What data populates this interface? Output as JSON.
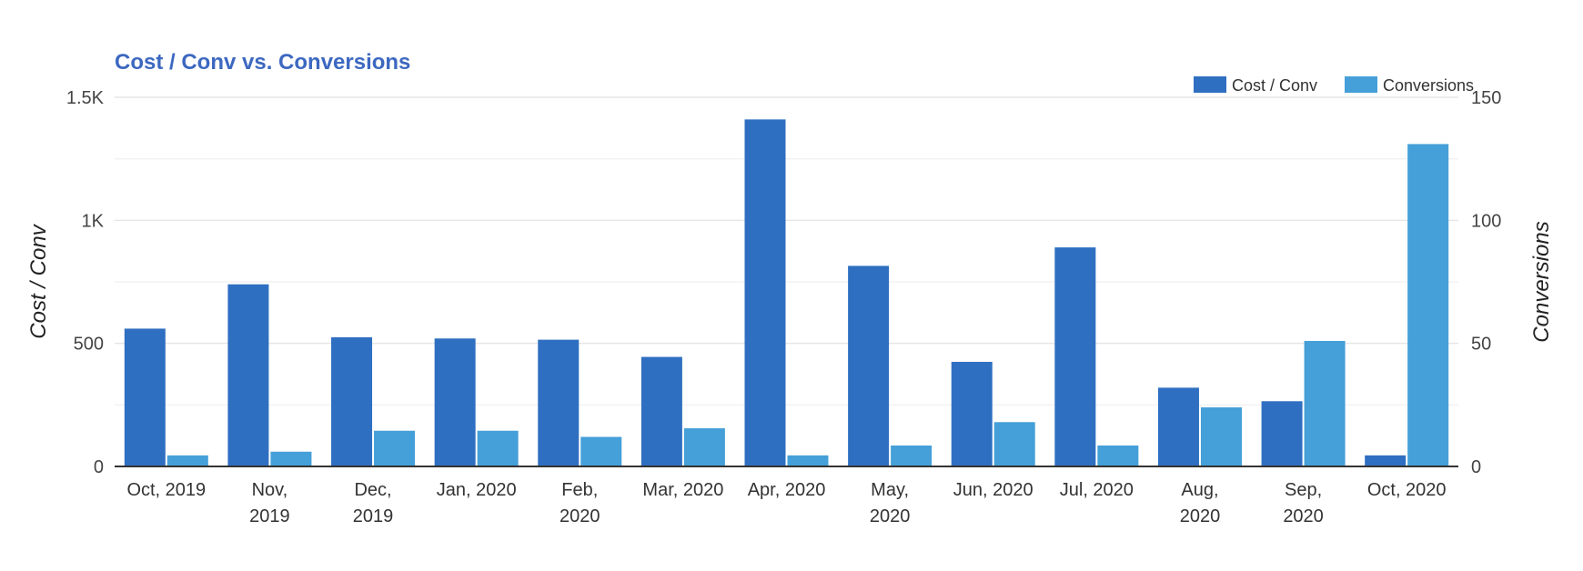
{
  "chart_data": {
    "type": "bar",
    "title": "Cost / Conv vs. Conversions",
    "ylabel": "Cost / Conv",
    "y2label": "Conversions",
    "categories": [
      [
        "Oct, 2019"
      ],
      [
        "Nov,",
        "2019"
      ],
      [
        "Dec,",
        "2019"
      ],
      [
        "Jan, 2020"
      ],
      [
        "Feb,",
        "2020"
      ],
      [
        "Mar, 2020"
      ],
      [
        "Apr, 2020"
      ],
      [
        "May,",
        "2020"
      ],
      [
        "Jun, 2020"
      ],
      [
        "Jul, 2020"
      ],
      [
        "Aug,",
        "2020"
      ],
      [
        "Sep,",
        "2020"
      ],
      [
        "Oct, 2020"
      ]
    ],
    "series": [
      {
        "name": "Cost / Conv",
        "axis": "left",
        "color": "#2f6fc1",
        "values": [
          560,
          740,
          525,
          520,
          515,
          445,
          1410,
          815,
          425,
          890,
          320,
          265,
          45
        ]
      },
      {
        "name": "Conversions",
        "axis": "right",
        "color": "#459fd8",
        "values": [
          4.5,
          6,
          14.5,
          14.5,
          12,
          15.5,
          4.5,
          8.5,
          18,
          8.5,
          24,
          51,
          131
        ]
      }
    ],
    "ylim": [
      0,
      1500
    ],
    "y2lim": [
      0,
      150
    ],
    "yticks": [
      0,
      500,
      1000,
      1500
    ],
    "yticklabels": [
      "0",
      "500",
      "1K",
      "1.5K"
    ],
    "y2ticks": [
      0,
      50,
      100,
      150
    ],
    "y2ticklabels": [
      "0",
      "50",
      "100",
      "150"
    ],
    "legend_position": "top-right",
    "grid": true
  }
}
